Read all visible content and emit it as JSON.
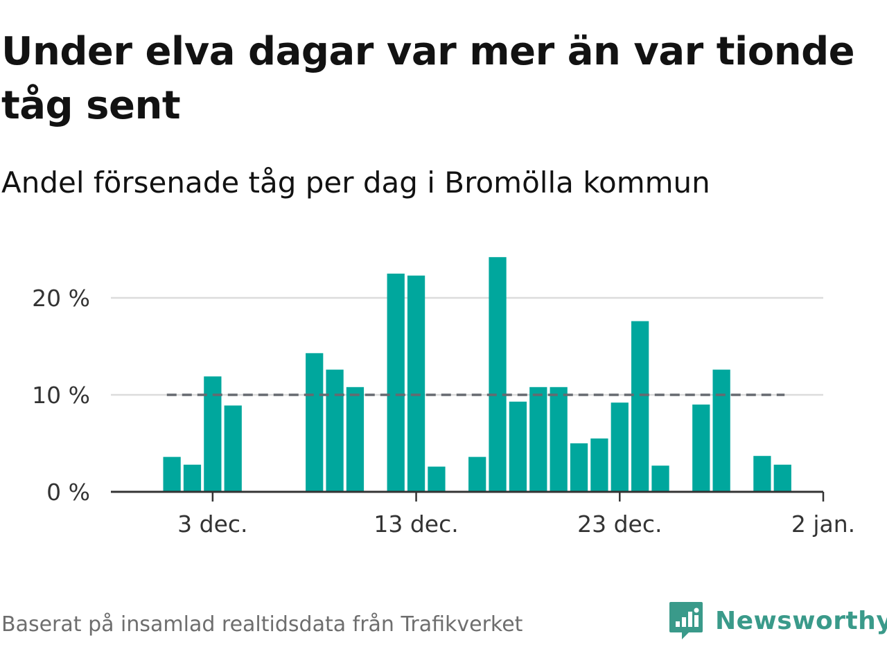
{
  "title": "Under elva dagar var mer än var tionde tåg sent",
  "subtitle": "Andel försenade tåg per dag i Bromölla kommun",
  "footer": "Baserat på insamlad realtidsdata från Trafikverket",
  "brand": {
    "name": "Newsworthy",
    "icon": "newsworthy-logo-icon",
    "color": "#3a9a8a"
  },
  "chart_data": {
    "type": "bar",
    "x": [
      "2023-12-01",
      "2023-12-02",
      "2023-12-03",
      "2023-12-04",
      "2023-12-05",
      "2023-12-06",
      "2023-12-07",
      "2023-12-08",
      "2023-12-09",
      "2023-12-10",
      "2023-12-11",
      "2023-12-12",
      "2023-12-13",
      "2023-12-14",
      "2023-12-15",
      "2023-12-16",
      "2023-12-17",
      "2023-12-18",
      "2023-12-19",
      "2023-12-20",
      "2023-12-21",
      "2023-12-22",
      "2023-12-23",
      "2023-12-24",
      "2023-12-25",
      "2023-12-26",
      "2023-12-27",
      "2023-12-28",
      "2023-12-29",
      "2023-12-30",
      "2023-12-31"
    ],
    "values": [
      3.6,
      2.8,
      11.9,
      8.9,
      null,
      null,
      null,
      14.3,
      12.6,
      10.8,
      null,
      22.5,
      22.3,
      2.6,
      null,
      3.6,
      24.2,
      9.3,
      10.8,
      10.8,
      5.0,
      5.5,
      9.2,
      17.6,
      2.7,
      null,
      9.0,
      12.6,
      null,
      3.7,
      2.8
    ],
    "y_ticks": [
      {
        "value": 0,
        "label": "0 %"
      },
      {
        "value": 10,
        "label": "10 %"
      },
      {
        "value": 20,
        "label": "20 %"
      }
    ],
    "x_ticks": [
      {
        "date": "2023-12-03",
        "label": "3 dec."
      },
      {
        "date": "2023-12-13",
        "label": "13 dec."
      },
      {
        "date": "2023-12-23",
        "label": "23 dec."
      },
      {
        "date": "2024-01-02",
        "label": "2 jan."
      }
    ],
    "x_range": [
      "2023-11-28",
      "2024-01-02"
    ],
    "ylim": [
      0,
      25
    ],
    "reference_line": {
      "value": 10,
      "style": "dashed",
      "color": "#666a70"
    },
    "bar_color": "#00a79d",
    "grid": true
  }
}
